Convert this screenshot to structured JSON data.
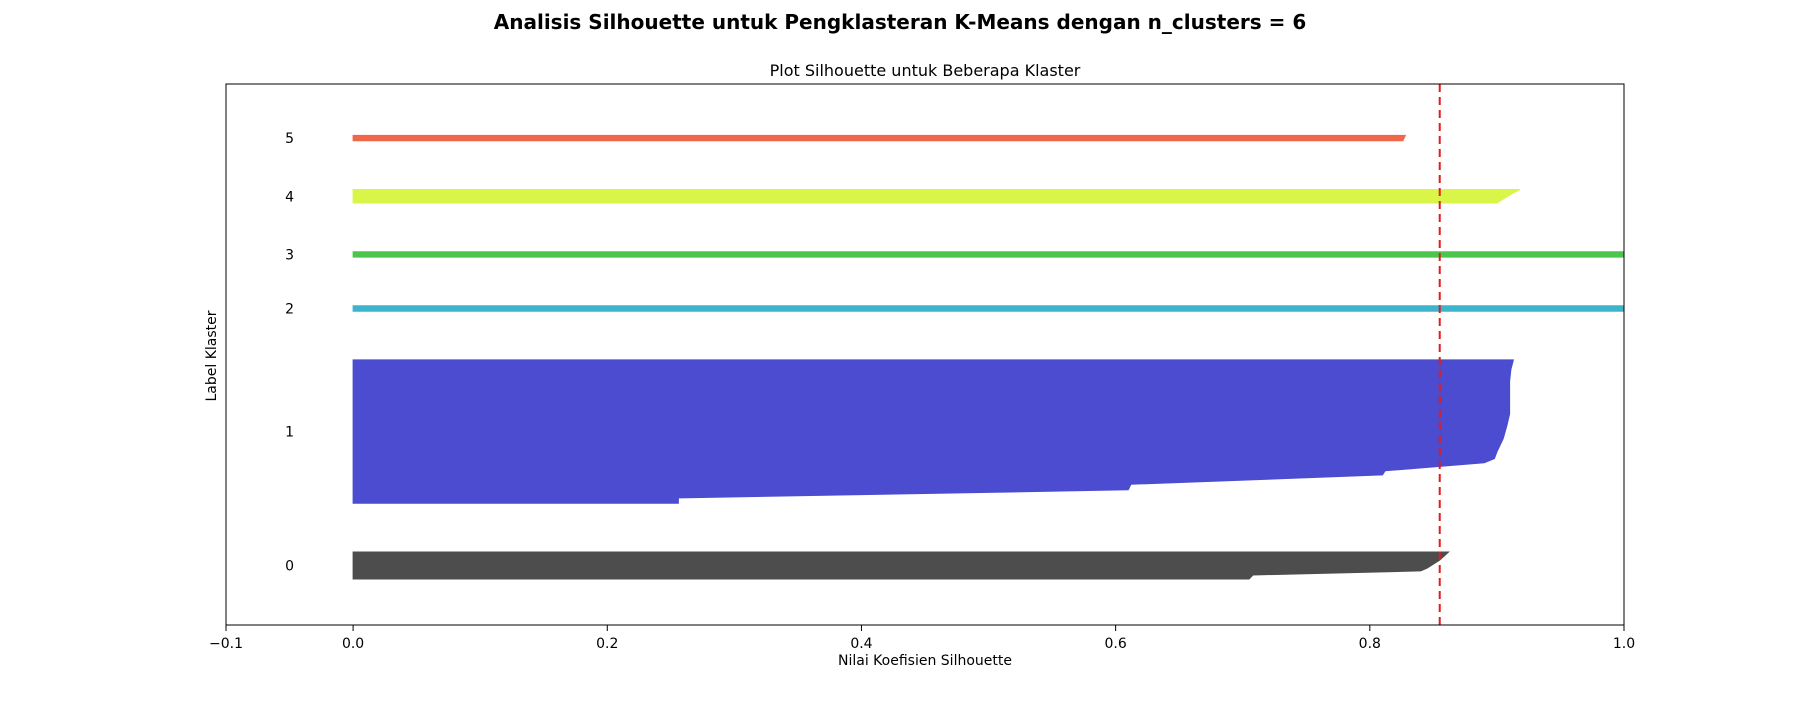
{
  "figure": {
    "suptitle": "Analisis Silhouette untuk Pengklasteran K-Means dengan n_clusters = 6"
  },
  "chart_data": {
    "type": "area",
    "title": "Plot Silhouette untuk Beberapa Klaster",
    "xlabel": "Nilai Koefisien Silhouette",
    "ylabel": "Label Klaster",
    "xlim": [
      -0.1,
      1.0
    ],
    "ylim": [
      0,
      400
    ],
    "xticks": [
      -0.1,
      0.0,
      0.2,
      0.4,
      0.6,
      0.8,
      1.0
    ],
    "xtick_labels": [
      "−0.1",
      "0.0",
      "0.2",
      "0.4",
      "0.6",
      "0.8",
      "1.0"
    ],
    "average_silhouette": 0.855,
    "average_line_color": "#e41a1c",
    "grid": false,
    "clusters": [
      {
        "label": "0",
        "color": "#4d4d4d",
        "y_lower": 34,
        "y_upper": 54,
        "profile": [
          [
            0,
            0.705
          ],
          [
            3,
            0.708
          ],
          [
            6,
            0.84
          ],
          [
            8,
            0.845
          ],
          [
            14,
            0.855
          ],
          [
            20,
            0.862
          ]
        ]
      },
      {
        "label": "1",
        "color": "#4b4ccf",
        "y_lower": 90,
        "y_upper": 196,
        "profile": [
          [
            0,
            0.256
          ],
          [
            4,
            0.256
          ],
          [
            4,
            0.258
          ],
          [
            10,
            0.61
          ],
          [
            14,
            0.612
          ],
          [
            21,
            0.81
          ],
          [
            24,
            0.812
          ],
          [
            30,
            0.89
          ],
          [
            33,
            0.898
          ],
          [
            38,
            0.9
          ],
          [
            48,
            0.905
          ],
          [
            58,
            0.908
          ],
          [
            66,
            0.91
          ],
          [
            78,
            0.91
          ],
          [
            90,
            0.91
          ],
          [
            99,
            0.911
          ],
          [
            106,
            0.913
          ]
        ]
      },
      {
        "label": "2",
        "color": "#3cb5cc",
        "y_lower": 232,
        "y_upper": 236,
        "profile": [
          [
            0,
            1.0
          ],
          [
            4,
            1.0
          ]
        ]
      },
      {
        "label": "3",
        "color": "#4cc54c",
        "y_lower": 272,
        "y_upper": 276,
        "profile": [
          [
            0,
            1.0
          ],
          [
            4,
            1.0
          ]
        ]
      },
      {
        "label": "4",
        "color": "#d9f548",
        "y_lower": 312,
        "y_upper": 322,
        "profile": [
          [
            0,
            0.9
          ],
          [
            3,
            0.905
          ],
          [
            7,
            0.912
          ],
          [
            10,
            0.918
          ]
        ]
      },
      {
        "label": "5",
        "color": "#f0674a",
        "y_lower": 358,
        "y_upper": 362,
        "profile": [
          [
            0,
            0.826
          ],
          [
            4,
            0.828
          ]
        ]
      }
    ]
  }
}
